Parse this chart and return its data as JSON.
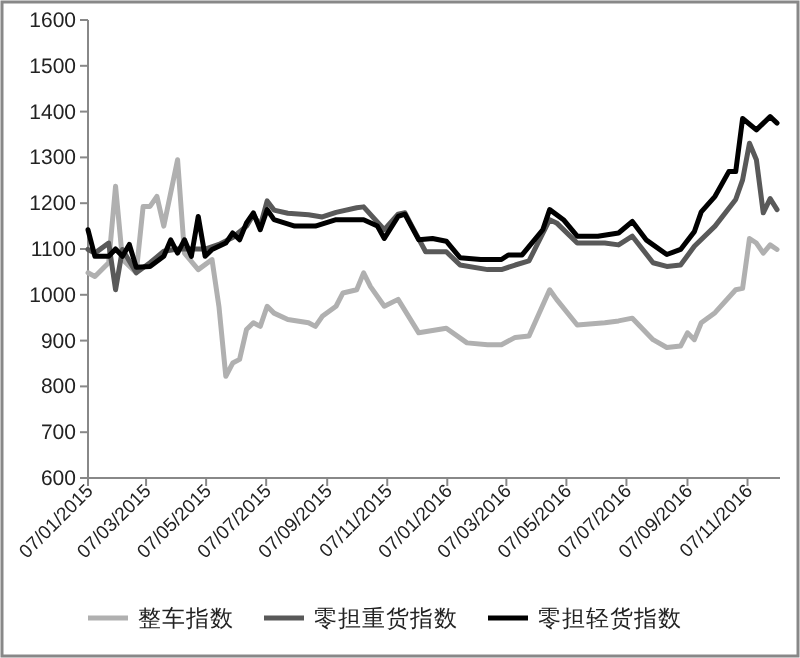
{
  "chart_data": {
    "type": "line",
    "legend": "bottom",
    "grid": false,
    "ylim": [
      600,
      1600
    ],
    "yticks": [
      600,
      700,
      800,
      900,
      1000,
      1100,
      1200,
      1300,
      1400,
      1500,
      1600
    ],
    "xlim": [
      "2015-01-07",
      "2016-12-10"
    ],
    "xticks": [
      {
        "value": "2015-01-07",
        "label": "07/01/2015"
      },
      {
        "value": "2015-03-07",
        "label": "07/03/2015"
      },
      {
        "value": "2015-05-07",
        "label": "07/05/2015"
      },
      {
        "value": "2015-07-07",
        "label": "07/07/2015"
      },
      {
        "value": "2015-09-07",
        "label": "07/09/2015"
      },
      {
        "value": "2015-11-07",
        "label": "07/11/2015"
      },
      {
        "value": "2016-01-07",
        "label": "07/01/2016"
      },
      {
        "value": "2016-03-07",
        "label": "07/03/2016"
      },
      {
        "value": "2016-05-07",
        "label": "07/05/2016"
      },
      {
        "value": "2016-07-07",
        "label": "07/07/2016"
      },
      {
        "value": "2016-09-07",
        "label": "07/09/2016"
      },
      {
        "value": "2016-11-07",
        "label": "07/11/2016"
      }
    ],
    "series": [
      {
        "name": "整车指数",
        "color": "#b0b0b0",
        "x": [
          "2015-01-07",
          "2015-01-14",
          "2015-01-28",
          "2015-02-04",
          "2015-02-11",
          "2015-02-25",
          "2015-03-04",
          "2015-03-11",
          "2015-03-18",
          "2015-03-25",
          "2015-04-08",
          "2015-04-15",
          "2015-04-29",
          "2015-05-13",
          "2015-05-20",
          "2015-05-27",
          "2015-06-03",
          "2015-06-10",
          "2015-06-17",
          "2015-06-24",
          "2015-07-01",
          "2015-07-08",
          "2015-07-15",
          "2015-07-29",
          "2015-08-19",
          "2015-08-26",
          "2015-09-02",
          "2015-09-16",
          "2015-09-23",
          "2015-10-07",
          "2015-10-14",
          "2015-10-21",
          "2015-11-04",
          "2015-11-18",
          "2015-12-09",
          "2016-01-06",
          "2016-01-27",
          "2016-02-17",
          "2016-03-02",
          "2016-03-16",
          "2016-03-30",
          "2016-04-20",
          "2016-04-27",
          "2016-05-18",
          "2016-06-15",
          "2016-06-29",
          "2016-07-13",
          "2016-08-03",
          "2016-08-17",
          "2016-08-31",
          "2016-09-07",
          "2016-09-14",
          "2016-09-21",
          "2016-10-05",
          "2016-10-26",
          "2016-11-02",
          "2016-11-09",
          "2016-11-16",
          "2016-11-23",
          "2016-11-30",
          "2016-12-07"
        ],
        "values": [
          1048,
          1040,
          1070,
          1237,
          1077,
          1048,
          1193,
          1193,
          1215,
          1150,
          1295,
          1091,
          1055,
          1077,
          975,
          822,
          851,
          859,
          924,
          939,
          931,
          975,
          960,
          946,
          939,
          931,
          953,
          975,
          1004,
          1011,
          1048,
          1018,
          975,
          990,
          917,
          927,
          895,
          891,
          891,
          907,
          910,
          1011,
          990,
          934,
          939,
          943,
          949,
          902,
          885,
          888,
          917,
          902,
          939,
          961,
          1011,
          1014,
          1123,
          1113,
          1091,
          1109,
          1099
        ]
      },
      {
        "name": "零担重货指数",
        "color": "#595959",
        "x": [
          "2015-01-07",
          "2015-01-14",
          "2015-01-28",
          "2015-02-04",
          "2015-02-11",
          "2015-02-25",
          "2015-03-11",
          "2015-03-25",
          "2015-04-08",
          "2015-04-22",
          "2015-05-06",
          "2015-05-20",
          "2015-06-03",
          "2015-06-17",
          "2015-06-24",
          "2015-07-01",
          "2015-07-08",
          "2015-07-15",
          "2015-07-29",
          "2015-08-19",
          "2015-09-02",
          "2015-09-16",
          "2015-10-07",
          "2015-10-14",
          "2015-11-04",
          "2015-11-18",
          "2015-11-25",
          "2015-12-02",
          "2015-12-16",
          "2016-01-06",
          "2016-01-20",
          "2016-02-17",
          "2016-03-02",
          "2016-03-16",
          "2016-03-30",
          "2016-04-20",
          "2016-04-27",
          "2016-05-18",
          "2016-06-15",
          "2016-06-29",
          "2016-07-13",
          "2016-08-03",
          "2016-08-17",
          "2016-08-31",
          "2016-09-14",
          "2016-10-05",
          "2016-10-26",
          "2016-11-02",
          "2016-11-09",
          "2016-11-16",
          "2016-11-23",
          "2016-11-30",
          "2016-12-07"
        ],
        "values": [
          1099,
          1091,
          1113,
          1011,
          1099,
          1048,
          1070,
          1095,
          1100,
          1100,
          1100,
          1110,
          1125,
          1150,
          1175,
          1150,
          1205,
          1185,
          1178,
          1175,
          1170,
          1180,
          1190,
          1192,
          1142,
          1176,
          1179,
          1150,
          1094,
          1094,
          1065,
          1055,
          1055,
          1065,
          1074,
          1164,
          1157,
          1113,
          1113,
          1109,
          1128,
          1070,
          1062,
          1065,
          1106,
          1150,
          1208,
          1251,
          1331,
          1295,
          1179,
          1210,
          1186
        ]
      },
      {
        "name": "零担轻货指数",
        "color": "#000000",
        "x": [
          "2015-01-07",
          "2015-01-14",
          "2015-01-28",
          "2015-02-04",
          "2015-02-11",
          "2015-02-18",
          "2015-02-25",
          "2015-03-11",
          "2015-03-25",
          "2015-04-01",
          "2015-04-08",
          "2015-04-15",
          "2015-04-22",
          "2015-04-29",
          "2015-05-06",
          "2015-05-13",
          "2015-05-27",
          "2015-06-03",
          "2015-06-10",
          "2015-06-17",
          "2015-06-24",
          "2015-07-01",
          "2015-07-08",
          "2015-07-15",
          "2015-08-05",
          "2015-08-26",
          "2015-09-16",
          "2015-10-14",
          "2015-10-28",
          "2015-11-04",
          "2015-11-18",
          "2015-11-25",
          "2015-12-09",
          "2015-12-23",
          "2016-01-06",
          "2016-01-20",
          "2016-02-10",
          "2016-03-02",
          "2016-03-09",
          "2016-03-23",
          "2016-04-13",
          "2016-04-20",
          "2016-05-04",
          "2016-05-18",
          "2016-06-08",
          "2016-06-29",
          "2016-07-13",
          "2016-07-27",
          "2016-08-17",
          "2016-08-31",
          "2016-09-14",
          "2016-09-21",
          "2016-10-05",
          "2016-10-19",
          "2016-10-26",
          "2016-11-02",
          "2016-11-16",
          "2016-11-30",
          "2016-12-07"
        ],
        "values": [
          1142,
          1084,
          1084,
          1100,
          1084,
          1110,
          1060,
          1062,
          1084,
          1120,
          1091,
          1120,
          1084,
          1171,
          1084,
          1099,
          1113,
          1135,
          1120,
          1157,
          1179,
          1142,
          1186,
          1164,
          1150,
          1150,
          1164,
          1164,
          1150,
          1123,
          1171,
          1176,
          1120,
          1123,
          1117,
          1081,
          1077,
          1077,
          1087,
          1087,
          1142,
          1186,
          1164,
          1128,
          1128,
          1135,
          1160,
          1120,
          1088,
          1099,
          1138,
          1181,
          1215,
          1269,
          1269,
          1385,
          1360,
          1389,
          1375
        ]
      }
    ]
  }
}
